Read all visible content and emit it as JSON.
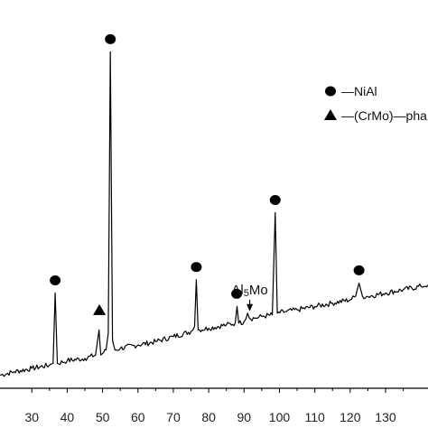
{
  "chart_data": {
    "type": "line",
    "title": "",
    "xlabel": "",
    "ylabel": "",
    "xlim": [
      21,
      142
    ],
    "ylim": [
      0,
      100
    ],
    "grid": false,
    "legend_position": "top-right",
    "x_ticks": [
      "30",
      "40",
      "50",
      "60",
      "70",
      "80",
      "90",
      "100",
      "110",
      "120",
      "130"
    ],
    "series": [
      {
        "type": "line",
        "color": "#000000",
        "points": [
          [
            21,
            1.5
          ],
          [
            25,
            2.5
          ],
          [
            30,
            3.5
          ],
          [
            35,
            4.5
          ],
          [
            36,
            5
          ],
          [
            36.6,
            26
          ],
          [
            37.2,
            5
          ],
          [
            40,
            5.8
          ],
          [
            45,
            6.5
          ],
          [
            48,
            7.5
          ],
          [
            49,
            15
          ],
          [
            49.5,
            7.5
          ],
          [
            51,
            9
          ],
          [
            51.6,
            14
          ],
          [
            52.2,
            98
          ],
          [
            52.8,
            12
          ],
          [
            53.5,
            9
          ],
          [
            55,
            9.5
          ],
          [
            60,
            10.5
          ],
          [
            65,
            11.5
          ],
          [
            70,
            13
          ],
          [
            75,
            14.5
          ],
          [
            76,
            16
          ],
          [
            76.5,
            30
          ],
          [
            77,
            15
          ],
          [
            80,
            15.5
          ],
          [
            85,
            16.5
          ],
          [
            87.5,
            17
          ],
          [
            88,
            22
          ],
          [
            88.5,
            17
          ],
          [
            90,
            17.5
          ],
          [
            91,
            20
          ],
          [
            91.5,
            18.5
          ],
          [
            93,
            18.5
          ],
          [
            95,
            19
          ],
          [
            98,
            19.5
          ],
          [
            98.8,
            50
          ],
          [
            99.4,
            20
          ],
          [
            102,
            20.5
          ],
          [
            105,
            21
          ],
          [
            110,
            22
          ],
          [
            115,
            23
          ],
          [
            120,
            24
          ],
          [
            121.5,
            25
          ],
          [
            122.5,
            29
          ],
          [
            123.5,
            25
          ],
          [
            125,
            25
          ],
          [
            130,
            26
          ],
          [
            135,
            27
          ],
          [
            140,
            28
          ],
          [
            142,
            28.5
          ]
        ]
      }
    ],
    "markers": [
      {
        "shape": "circle",
        "phase": "NiAl",
        "x": 36.6,
        "y": 26
      },
      {
        "shape": "triangle",
        "phase": "(CrMo)-phase",
        "x": 49.1,
        "y": 17
      },
      {
        "shape": "circle",
        "phase": "NiAl",
        "x": 52.2,
        "y": 98
      },
      {
        "shape": "circle",
        "phase": "NiAl",
        "x": 76.5,
        "y": 30
      },
      {
        "shape": "circle",
        "phase": "NiAl",
        "x": 87.9,
        "y": 22
      },
      {
        "shape": "circle",
        "phase": "NiAl",
        "x": 98.8,
        "y": 50
      },
      {
        "shape": "circle",
        "phase": "NiAl",
        "x": 122.5,
        "y": 29
      }
    ],
    "annotations": [
      {
        "text": "Al5Mo",
        "base": "Al",
        "subscript": "5",
        "suffix": "Mo",
        "x": 91.6,
        "y": 20
      }
    ],
    "legend": [
      {
        "shape": "circle",
        "label": "—NiAl"
      },
      {
        "shape": "triangle",
        "label": "—(CrMo)—pha"
      }
    ]
  }
}
